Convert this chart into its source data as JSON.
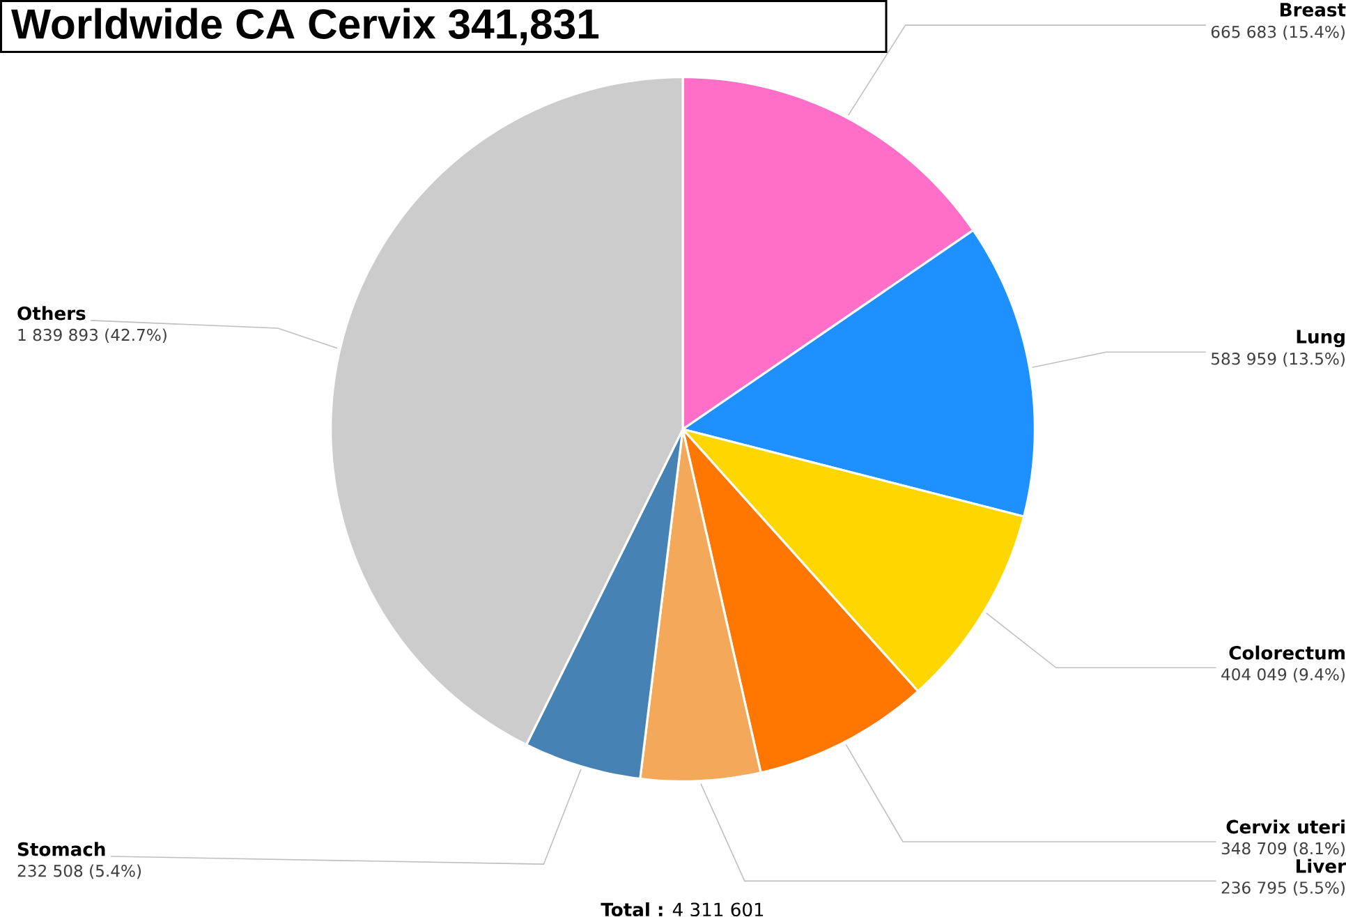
{
  "chart_data": {
    "type": "pie",
    "title": "Worldwide CA Cervix 341,831",
    "categories": [
      "Breast",
      "Lung",
      "Colorectum",
      "Cervix uteri",
      "Liver",
      "Stomach",
      "Others"
    ],
    "values": [
      665683,
      583959,
      404049,
      348709,
      236795,
      232508,
      1839893
    ],
    "colors": [
      "#ff6ec7",
      "#1e90ff",
      "#ffd700",
      "#ff7700",
      "#f4a85a",
      "#4682b4",
      "#cccccc"
    ],
    "value_labels": [
      "665 683 (15.4%)",
      "583 959 (13.5%)",
      "404 049 (9.4%)",
      "348 709 (8.1%)",
      "236 795 (5.5%)",
      "232 508 (5.4%)",
      "1 839 893 (42.7%)"
    ],
    "annotations": [
      "**Total :** 4 311 601"
    ]
  }
}
